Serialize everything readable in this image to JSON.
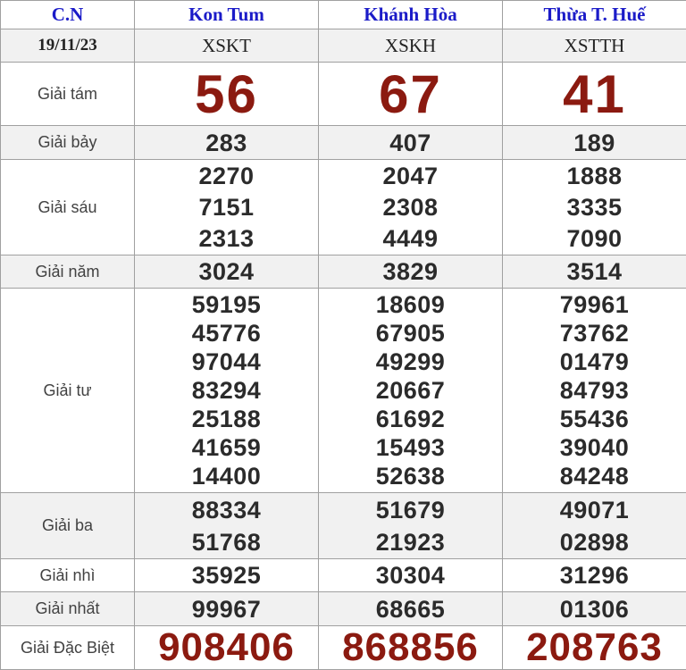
{
  "colors": {
    "header_link_blue": "#1b1bc8",
    "prize_highlight_red": "#8b1a10",
    "alt_row_bg": "#f1f1f1",
    "border_gray": "#a0a0a0"
  },
  "header": {
    "day_label": "C.N",
    "provinces": [
      "Kon Tum",
      "Khánh Hòa",
      "Thừa T. Huế"
    ]
  },
  "date_row": {
    "date": "19/11/23",
    "station_codes": [
      "XSKT",
      "XSKH",
      "XSTTH"
    ]
  },
  "prizes": [
    {
      "label": "Giải tám",
      "emphasis": "big",
      "values": [
        [
          "56"
        ],
        [
          "67"
        ],
        [
          "41"
        ]
      ]
    },
    {
      "label": "Giải bảy",
      "values": [
        [
          "283"
        ],
        [
          "407"
        ],
        [
          "189"
        ]
      ]
    },
    {
      "label": "Giải sáu",
      "values": [
        [
          "2270",
          "7151",
          "2313"
        ],
        [
          "2047",
          "2308",
          "4449"
        ],
        [
          "1888",
          "3335",
          "7090"
        ]
      ]
    },
    {
      "label": "Giải năm",
      "values": [
        [
          "3024"
        ],
        [
          "3829"
        ],
        [
          "3514"
        ]
      ]
    },
    {
      "label": "Giải tư",
      "values": [
        [
          "59195",
          "45776",
          "97044",
          "83294",
          "25188",
          "41659",
          "14400"
        ],
        [
          "18609",
          "67905",
          "49299",
          "20667",
          "61692",
          "15493",
          "52638"
        ],
        [
          "79961",
          "73762",
          "01479",
          "84793",
          "55436",
          "39040",
          "84248"
        ]
      ]
    },
    {
      "label": "Giải ba",
      "values": [
        [
          "88334",
          "51768"
        ],
        [
          "51679",
          "21923"
        ],
        [
          "49071",
          "02898"
        ]
      ]
    },
    {
      "label": "Giải nhì",
      "values": [
        [
          "35925"
        ],
        [
          "30304"
        ],
        [
          "31296"
        ]
      ]
    },
    {
      "label": "Giải nhất",
      "values": [
        [
          "99967"
        ],
        [
          "68665"
        ],
        [
          "01306"
        ]
      ]
    },
    {
      "label": "Giải Đặc Biệt",
      "emphasis": "special",
      "values": [
        [
          "908406"
        ],
        [
          "868856"
        ],
        [
          "208763"
        ]
      ]
    }
  ]
}
